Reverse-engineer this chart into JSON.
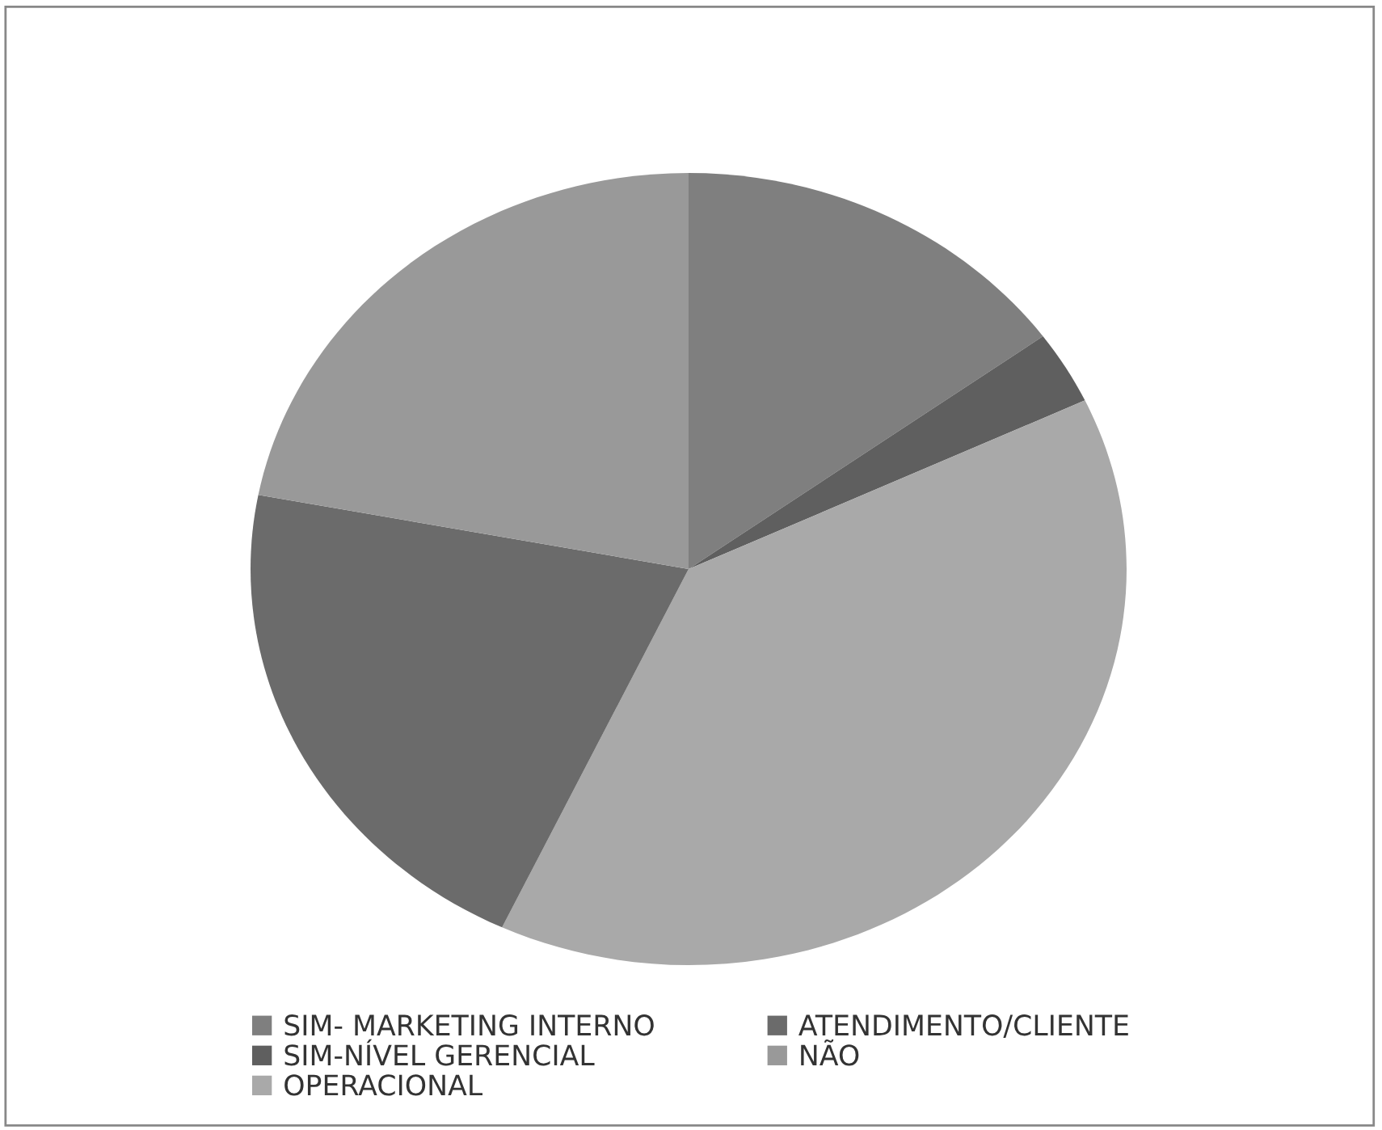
{
  "chart_data": {
    "type": "pie",
    "categories": [
      "SIM- MARKETING INTERNO",
      "SIM-NÍVEL GERENCIAL",
      "OPERACIONAL",
      "ATENDIMENTO/CLIENTE",
      "NÃO"
    ],
    "values": [
      15,
      3,
      39,
      21,
      22
    ],
    "colors": [
      "#7f7f7f",
      "#5f5f5f",
      "#a9a9a9",
      "#6b6b6b",
      "#999999"
    ],
    "legend": "bottom"
  }
}
